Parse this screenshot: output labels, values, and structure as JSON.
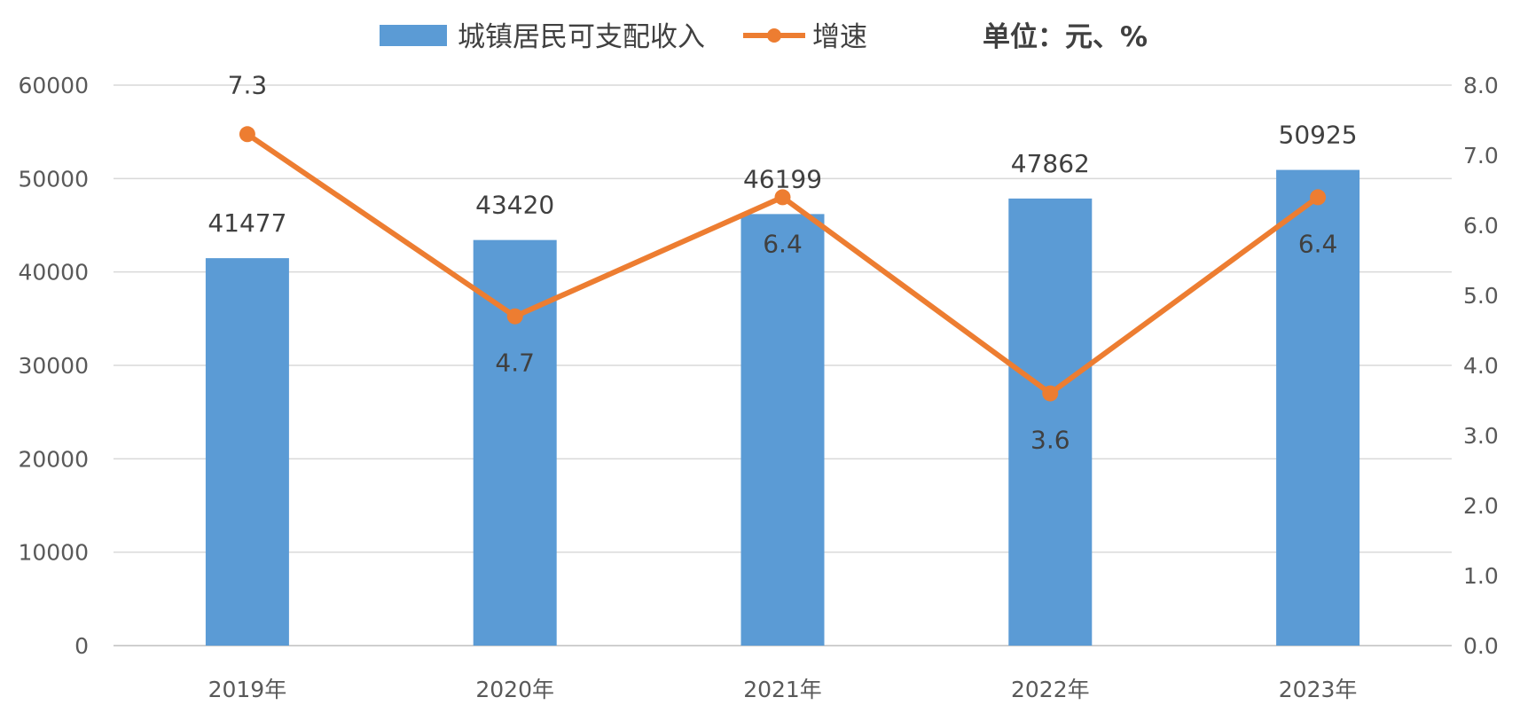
{
  "chart_data": {
    "type": "bar",
    "title": "",
    "unit_note": "单位：元、%",
    "categories": [
      "2019年",
      "2020年",
      "2021年",
      "2022年",
      "2023年"
    ],
    "series": [
      {
        "name": "城镇居民可支配收入",
        "type": "bar",
        "axis": "left",
        "color": "#5b9bd5",
        "values": [
          41477,
          43420,
          46199,
          47862,
          50925
        ]
      },
      {
        "name": "增速",
        "type": "line",
        "axis": "right",
        "color": "#ed7d31",
        "values": [
          7.3,
          4.7,
          6.4,
          3.6,
          6.4
        ]
      }
    ],
    "y_left": {
      "min": 0,
      "max": 60000,
      "ticks": [
        "0",
        "10000",
        "20000",
        "30000",
        "40000",
        "50000",
        "60000"
      ]
    },
    "y_right": {
      "min": 0,
      "max": 8,
      "ticks": [
        "0.0",
        "1.0",
        "2.0",
        "3.0",
        "4.0",
        "5.0",
        "6.0",
        "7.0",
        "8.0"
      ]
    },
    "grid": true,
    "legend_position": "top",
    "bar_value_labels": [
      "41477",
      "43420",
      "46199",
      "47862",
      "50925"
    ],
    "line_value_labels": [
      "7.3",
      "4.7",
      "6.4",
      "3.6",
      "6.4"
    ]
  }
}
